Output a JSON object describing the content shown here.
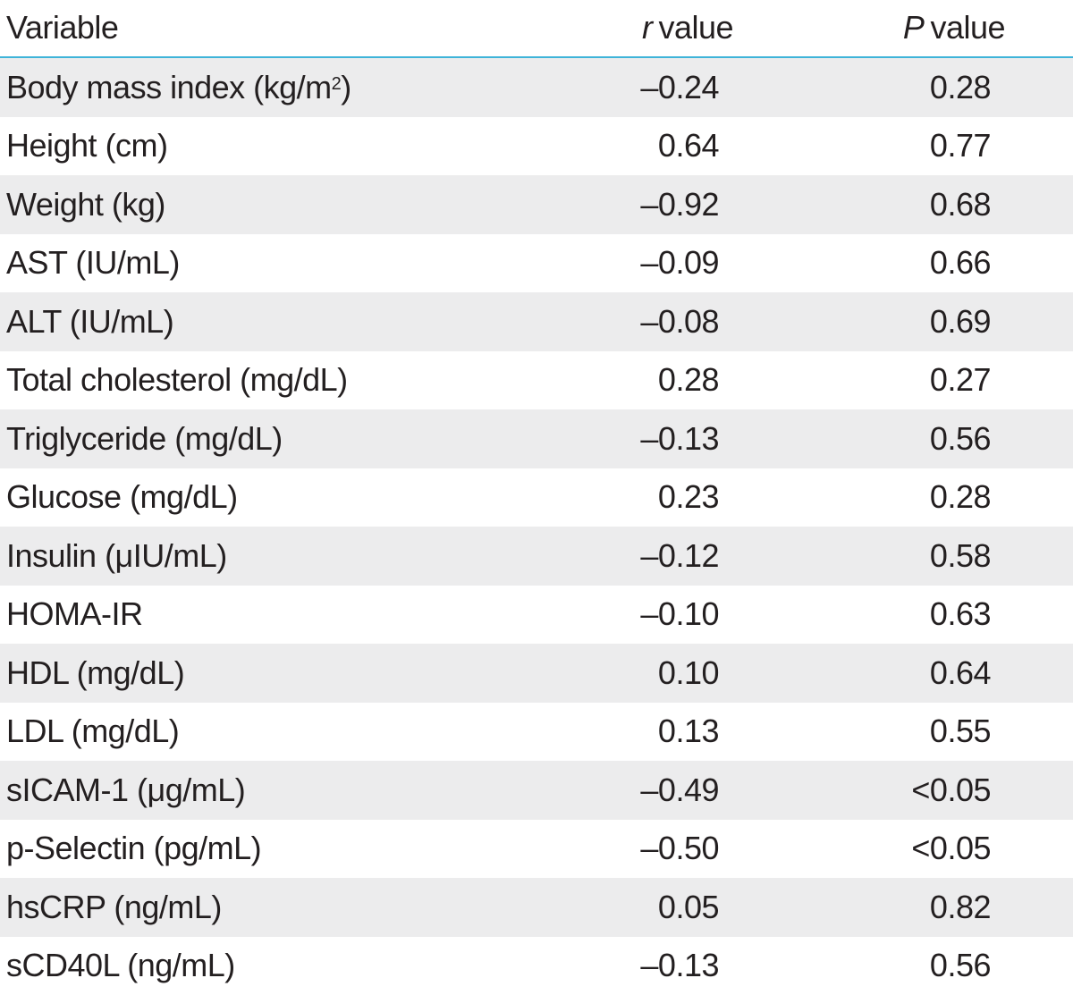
{
  "header": {
    "variable": "Variable",
    "r_symbol": "r",
    "r_suffix": "value",
    "p_symbol": "P",
    "p_suffix": "value"
  },
  "rows": [
    {
      "variable": "Body mass index (kg/m",
      "variable_sup": "2",
      "variable_after": ")",
      "r": "–0.24",
      "p": "0.28"
    },
    {
      "variable": "Height (cm)",
      "r": "0.64",
      "p": "0.77"
    },
    {
      "variable": "Weight (kg)",
      "r": "–0.92",
      "p": "0.68"
    },
    {
      "variable": "AST (IU/mL)",
      "r": "–0.09",
      "p": "0.66"
    },
    {
      "variable": "ALT (IU/mL)",
      "r": "–0.08",
      "p": "0.69"
    },
    {
      "variable": "Total cholesterol (mg/dL)",
      "r": "0.28",
      "p": "0.27"
    },
    {
      "variable": "Triglyceride (mg/dL)",
      "r": "–0.13",
      "p": "0.56"
    },
    {
      "variable": "Glucose (mg/dL)",
      "r": "0.23",
      "p": "0.28"
    },
    {
      "variable": "Insulin (μIU/mL)",
      "r": "–0.12",
      "p": "0.58"
    },
    {
      "variable": "HOMA-IR",
      "r": "–0.10",
      "p": "0.63"
    },
    {
      "variable": "HDL (mg/dL)",
      "r": "0.10",
      "p": "0.64"
    },
    {
      "variable": "LDL (mg/dL)",
      "r": "0.13",
      "p": "0.55"
    },
    {
      "variable": "sICAM-1 (μg/mL)",
      "r": "–0.49",
      "p": "<0.05"
    },
    {
      "variable": "p-Selectin (pg/mL)",
      "r": "–0.50",
      "p": "<0.05"
    },
    {
      "variable": "hsCRP (ng/mL)",
      "r": "0.05",
      "p": "0.82"
    },
    {
      "variable": "sCD40L (ng/mL)",
      "r": "–0.13",
      "p": "0.56"
    }
  ],
  "colors": {
    "header_rule": "#3eb4d9",
    "shaded_row": "#ececed",
    "text": "#231f20"
  }
}
